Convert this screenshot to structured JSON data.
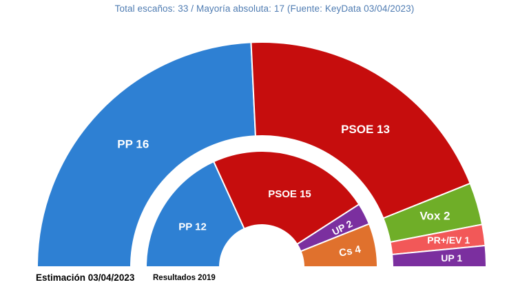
{
  "title": {
    "text": "Total escaños: 33 / Mayoría absoluta: 17 (Fuente: KeyData 03/04/2023)",
    "color": "#4f7cb2"
  },
  "chart_data": {
    "type": "pie",
    "subtype": "hemicycle-double-donut",
    "total_seats": 33,
    "majority": 17,
    "source": "KeyData 03/04/2023",
    "legend_position": "none",
    "rings": [
      {
        "id": "estimacion-2023",
        "name": "Estimación 03/04/2023",
        "position": "outer",
        "segments": [
          {
            "party": "PP",
            "seats": 16,
            "label": "PP 16",
            "color": "#2e80d3"
          },
          {
            "party": "PSOE",
            "seats": 13,
            "label": "PSOE 13",
            "color": "#c60d0d",
            "label_angle": 53,
            "label_r": 250
          },
          {
            "party": "Vox",
            "seats": 2,
            "label": "Vox 2",
            "color": "#6fae28",
            "label_r": 262
          },
          {
            "party": "PR+/EV",
            "seats": 1,
            "label": "PR+/EV 1",
            "color": "#f25858",
            "label_r": 274,
            "font_size": 14
          },
          {
            "party": "UP",
            "seats": 1,
            "label": "UP 1",
            "color": "#7b2f9f",
            "label_r": 276,
            "font_size": 14
          }
        ]
      },
      {
        "id": "resultados-2019",
        "name": "Resultados 2019",
        "position": "inner",
        "segments": [
          {
            "party": "PP",
            "seats": 12,
            "label": "PP 12",
            "color": "#2e80d3",
            "label_angle": 150,
            "label_r": 116
          },
          {
            "party": "PSOE",
            "seats": 15,
            "label": "PSOE 15",
            "color": "#c60d0d",
            "label_angle": 69,
            "label_r": 113
          },
          {
            "party": "UP",
            "seats": 2,
            "label": "UP 2",
            "color": "#7b2f9f",
            "label_angle": 26,
            "label_r": 130,
            "label_rot": -27,
            "font_size": 14
          },
          {
            "party": "Cs",
            "seats": 4,
            "label": "Cs 4",
            "color": "#e0712d",
            "label_angle": 10,
            "label_r": 130,
            "label_rot": -11
          }
        ]
      }
    ]
  }
}
